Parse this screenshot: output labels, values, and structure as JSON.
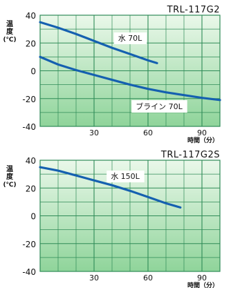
{
  "chart_data": [
    {
      "type": "line",
      "title": "TRL-117G2",
      "ylabel": "温\n度\n(℃)",
      "xlabel": "時間（分）",
      "ylim": [
        -40,
        40
      ],
      "xlim": [
        0,
        100
      ],
      "xticks": [
        30,
        60,
        90
      ],
      "yticks": [
        -40,
        -20,
        0,
        20,
        40
      ],
      "grid": true,
      "series": [
        {
          "name": "水 70L",
          "color": "#1560b0",
          "x": [
            0,
            10,
            20,
            30,
            40,
            50,
            60,
            65
          ],
          "y": [
            35,
            31,
            26.5,
            21.5,
            16.5,
            12,
            7.5,
            5.5
          ]
        },
        {
          "name": "ブライン 70L",
          "color": "#1560b0",
          "x": [
            0,
            10,
            20,
            30,
            40,
            50,
            60,
            70,
            80,
            90,
            100
          ],
          "y": [
            10,
            4.5,
            0.5,
            -3,
            -6.5,
            -10,
            -13,
            -15.5,
            -17.5,
            -19.5,
            -21
          ]
        }
      ]
    },
    {
      "type": "line",
      "title": "TRL-117G2S",
      "ylabel": "温\n度\n(℃)",
      "xlabel": "時間（分）",
      "ylim": [
        -40,
        40
      ],
      "xlim": [
        0,
        100
      ],
      "xticks": [
        30,
        60,
        90
      ],
      "yticks": [
        -40,
        -20,
        0,
        20,
        40
      ],
      "grid": true,
      "series": [
        {
          "name": "水 150L",
          "color": "#1560b0",
          "x": [
            0,
            10,
            20,
            30,
            40,
            50,
            60,
            70,
            78
          ],
          "y": [
            35,
            32.5,
            29,
            25.5,
            22,
            18,
            13.5,
            9,
            6
          ]
        }
      ]
    }
  ],
  "style": {
    "grid_line": "#2e8b57",
    "fill_top": "#eaf8ea",
    "fill_bottom": "#8fd49a",
    "series_color": "#1560b0"
  }
}
